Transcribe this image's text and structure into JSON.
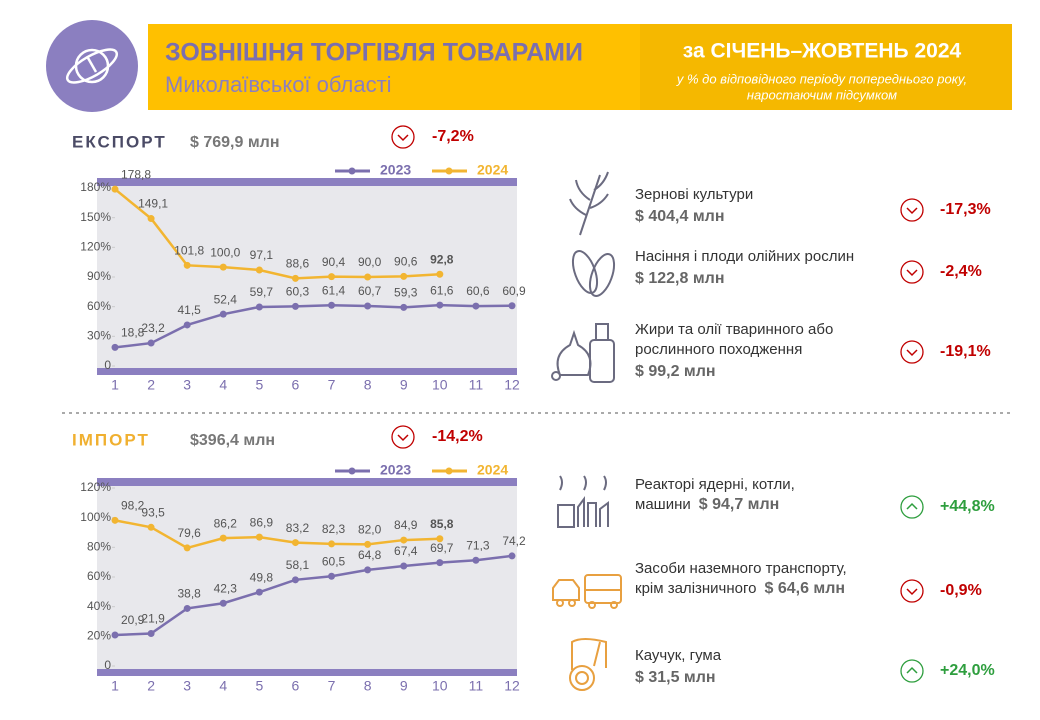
{
  "header": {
    "title": "ЗОВНІШНЯ ТОРГІВЛЯ ТОВАРАМИ",
    "subtitle": "Миколаївської області",
    "period": "за СІЧЕНЬ–ЖОВТЕНЬ 2024",
    "note": [
      "у % до відповідного періоду попереднього року,",
      "наростаючим підсумком"
    ]
  },
  "export": {
    "label": "ЕКСПОРТ",
    "total": "$ 769,9 млн",
    "change": "-7,2%",
    "products": [
      {
        "name": [
          "Зернові культури"
        ],
        "value": "$ 404,4 млн",
        "change": "-17,3%"
      },
      {
        "name": [
          "Насіння і плоди олійних рослин"
        ],
        "value": "$ 122,8 млн",
        "change": "-2,4%"
      },
      {
        "name": [
          "Жири та олії тваринного або",
          "рослинного походження"
        ],
        "value": "$ 99,2 млн",
        "change": "-19,1%"
      }
    ]
  },
  "import": {
    "label": "ІМПОРТ",
    "total": "$396,4 млн",
    "change": "-14,2%",
    "products": [
      {
        "name": [
          "Реакторі ядерні, котли,",
          "машини"
        ],
        "value": "$ 94,7 млн",
        "change": "+44,8%"
      },
      {
        "name": [
          "Засоби наземного транспорту,",
          "крім залізничного"
        ],
        "value": "$ 64,6 млн",
        "change": "-0,9%"
      },
      {
        "name": [
          "Каучук, гума"
        ],
        "value": "$ 31,5 млн",
        "change": "+24,0%"
      }
    ]
  },
  "chart_data": [
    {
      "type": "line",
      "categories": [
        "1",
        "2",
        "3",
        "4",
        "5",
        "6",
        "7",
        "8",
        "9",
        "10",
        "11",
        "12"
      ],
      "ylim": [
        0,
        180
      ],
      "yticks": [
        0,
        {
          "value": 30,
          "label": "30%"
        },
        {
          "value": 60,
          "label": "60%"
        },
        {
          "value": 90,
          "label": "90%"
        },
        {
          "value": 120,
          "label": "120%"
        },
        {
          "value": 150,
          "label": "150%"
        },
        {
          "value": 180,
          "label": "180%"
        }
      ],
      "series": [
        {
          "name": "2023",
          "color": "#7b6fae",
          "values": [
            18.8,
            23.2,
            41.5,
            52.4,
            59.7,
            60.3,
            61.4,
            60.7,
            59.3,
            61.6,
            60.6,
            60.9
          ],
          "value_labels": [
            "18,8",
            "23,2",
            "41,5",
            "52,4",
            "59,7",
            "60,3",
            "61,4",
            "60,7",
            "59,3",
            "61,6",
            "60,6",
            "60,9"
          ]
        },
        {
          "name": "2024",
          "color": "#f2b531",
          "values": [
            178.8,
            149.1,
            101.8,
            100.0,
            97.1,
            88.6,
            90.4,
            90.0,
            90.6,
            92.8,
            null,
            null
          ],
          "value_labels": [
            "178,8",
            "149,1",
            "101,8",
            "100,0",
            "97,1",
            "88,6",
            "90,4",
            "90,0",
            "90,6",
            "92,8",
            null,
            null
          ]
        }
      ]
    },
    {
      "type": "line",
      "categories": [
        "1",
        "2",
        "3",
        "4",
        "5",
        "6",
        "7",
        "8",
        "9",
        "10",
        "11",
        "12"
      ],
      "ylim": [
        0,
        120
      ],
      "yticks": [
        0,
        {
          "value": 20,
          "label": "20%"
        },
        {
          "value": 40,
          "label": "40%"
        },
        {
          "value": 60,
          "label": "60%"
        },
        {
          "value": 80,
          "label": "80%"
        },
        {
          "value": 100,
          "label": "100%"
        },
        {
          "value": 120,
          "label": "120%"
        }
      ],
      "series": [
        {
          "name": "2023",
          "color": "#7b6fae",
          "values": [
            20.9,
            21.9,
            38.8,
            42.3,
            49.8,
            58.1,
            60.5,
            64.8,
            67.4,
            69.7,
            71.3,
            74.2
          ],
          "value_labels": [
            "20,9",
            "21,9",
            "38,8",
            "42,3",
            "49,8",
            "58,1",
            "60,5",
            "64,8",
            "67,4",
            "69,7",
            "71,3",
            "74,2"
          ]
        },
        {
          "name": "2024",
          "color": "#f2b531",
          "values": [
            98.2,
            93.5,
            79.6,
            86.2,
            86.9,
            83.2,
            82.3,
            82.0,
            84.9,
            85.8,
            null,
            null
          ],
          "value_labels": [
            "98,2",
            "93,5",
            "79,6",
            "86,2",
            "86,9",
            "83,2",
            "82,3",
            "82,0",
            "84,9",
            "85,8",
            null,
            null
          ]
        }
      ]
    }
  ]
}
